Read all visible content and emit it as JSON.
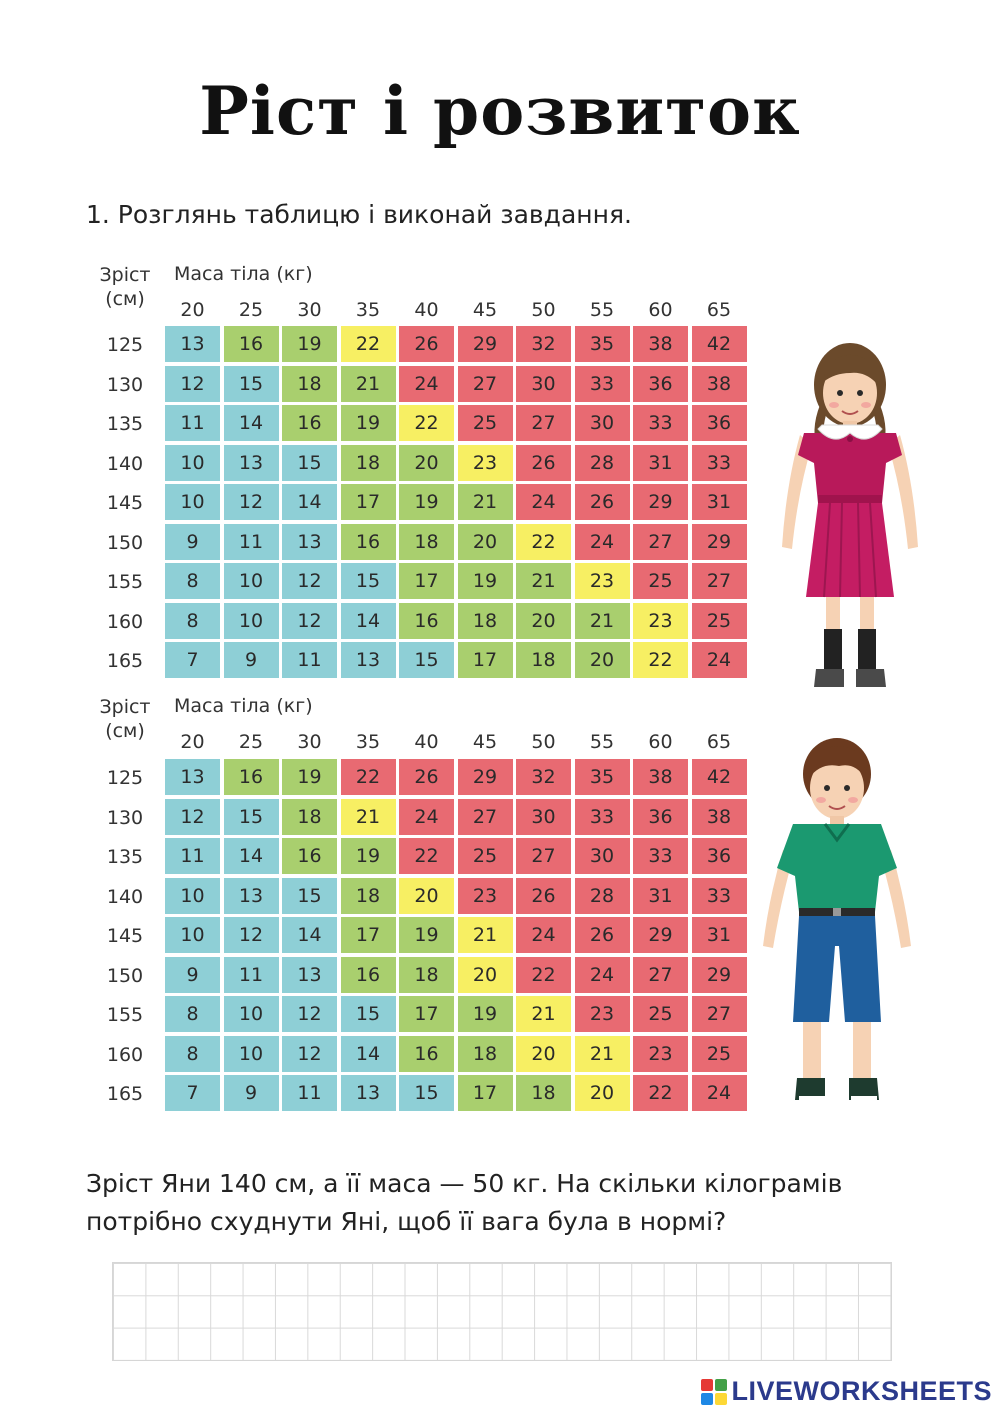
{
  "title": "Ріст і розвиток",
  "task": "1.  Розглянь таблицю і виконай завдання.",
  "table_header": {
    "height_label": "Зріст",
    "height_unit": "(см)",
    "mass_label": "Маса тіла (кг)"
  },
  "mass_values": [
    "20",
    "25",
    "30",
    "35",
    "40",
    "45",
    "50",
    "55",
    "60",
    "65"
  ],
  "height_values": [
    "125",
    "130",
    "135",
    "140",
    "145",
    "150",
    "155",
    "160",
    "165"
  ],
  "tables": [
    {
      "name": "girl",
      "rows": [
        [
          "13",
          "16",
          "19",
          "22",
          "26",
          "29",
          "32",
          "35",
          "38",
          "42"
        ],
        [
          "12",
          "15",
          "18",
          "21",
          "24",
          "27",
          "30",
          "33",
          "36",
          "38"
        ],
        [
          "11",
          "14",
          "16",
          "19",
          "22",
          "25",
          "27",
          "30",
          "33",
          "36"
        ],
        [
          "10",
          "13",
          "15",
          "18",
          "20",
          "23",
          "26",
          "28",
          "31",
          "33"
        ],
        [
          "10",
          "12",
          "14",
          "17",
          "19",
          "21",
          "24",
          "26",
          "29",
          "31"
        ],
        [
          "9",
          "11",
          "13",
          "16",
          "18",
          "20",
          "22",
          "24",
          "27",
          "29"
        ],
        [
          "8",
          "10",
          "12",
          "15",
          "17",
          "19",
          "21",
          "23",
          "25",
          "27"
        ],
        [
          "8",
          "10",
          "12",
          "14",
          "16",
          "18",
          "20",
          "21",
          "23",
          "25"
        ],
        [
          "7",
          "9",
          "11",
          "13",
          "15",
          "17",
          "18",
          "20",
          "22",
          "24"
        ]
      ],
      "colors": [
        [
          1,
          2,
          2,
          3,
          4,
          4,
          4,
          4,
          4,
          4
        ],
        [
          1,
          1,
          2,
          2,
          4,
          4,
          4,
          4,
          4,
          4
        ],
        [
          1,
          1,
          2,
          2,
          3,
          4,
          4,
          4,
          4,
          4
        ],
        [
          1,
          1,
          1,
          2,
          2,
          3,
          4,
          4,
          4,
          4
        ],
        [
          1,
          1,
          1,
          2,
          2,
          2,
          4,
          4,
          4,
          4
        ],
        [
          1,
          1,
          1,
          2,
          2,
          2,
          3,
          4,
          4,
          4
        ],
        [
          1,
          1,
          1,
          1,
          2,
          2,
          2,
          3,
          4,
          4
        ],
        [
          1,
          1,
          1,
          1,
          2,
          2,
          2,
          2,
          3,
          4
        ],
        [
          1,
          1,
          1,
          1,
          1,
          2,
          2,
          2,
          3,
          4
        ]
      ]
    },
    {
      "name": "boy",
      "rows": [
        [
          "13",
          "16",
          "19",
          "22",
          "26",
          "29",
          "32",
          "35",
          "38",
          "42"
        ],
        [
          "12",
          "15",
          "18",
          "21",
          "24",
          "27",
          "30",
          "33",
          "36",
          "38"
        ],
        [
          "11",
          "14",
          "16",
          "19",
          "22",
          "25",
          "27",
          "30",
          "33",
          "36"
        ],
        [
          "10",
          "13",
          "15",
          "18",
          "20",
          "23",
          "26",
          "28",
          "31",
          "33"
        ],
        [
          "10",
          "12",
          "14",
          "17",
          "19",
          "21",
          "24",
          "26",
          "29",
          "31"
        ],
        [
          "9",
          "11",
          "13",
          "16",
          "18",
          "20",
          "22",
          "24",
          "27",
          "29"
        ],
        [
          "8",
          "10",
          "12",
          "15",
          "17",
          "19",
          "21",
          "23",
          "25",
          "27"
        ],
        [
          "8",
          "10",
          "12",
          "14",
          "16",
          "18",
          "20",
          "21",
          "23",
          "25"
        ],
        [
          "7",
          "9",
          "11",
          "13",
          "15",
          "17",
          "18",
          "20",
          "22",
          "24"
        ]
      ],
      "colors": [
        [
          1,
          2,
          2,
          4,
          4,
          4,
          4,
          4,
          4,
          4
        ],
        [
          1,
          1,
          2,
          3,
          4,
          4,
          4,
          4,
          4,
          4
        ],
        [
          1,
          1,
          2,
          2,
          4,
          4,
          4,
          4,
          4,
          4
        ],
        [
          1,
          1,
          1,
          2,
          3,
          4,
          4,
          4,
          4,
          4
        ],
        [
          1,
          1,
          1,
          2,
          2,
          3,
          4,
          4,
          4,
          4
        ],
        [
          1,
          1,
          1,
          2,
          2,
          3,
          4,
          4,
          4,
          4
        ],
        [
          1,
          1,
          1,
          1,
          2,
          2,
          3,
          4,
          4,
          4
        ],
        [
          1,
          1,
          1,
          1,
          2,
          2,
          3,
          3,
          4,
          4
        ],
        [
          1,
          1,
          1,
          1,
          1,
          2,
          2,
          3,
          4,
          4
        ]
      ]
    }
  ],
  "palette": {
    "1": "#8ecfd6",
    "2": "#a9cf6e",
    "3": "#f7ef63",
    "4": "#e86a72"
  },
  "question": "Зріст Яни 140 см, а її маса — 50 кг. На скільки кілограмів потрібно схуднути Яні, щоб її вага була в нормі?",
  "brand": "LIVEWORKSHEETS"
}
